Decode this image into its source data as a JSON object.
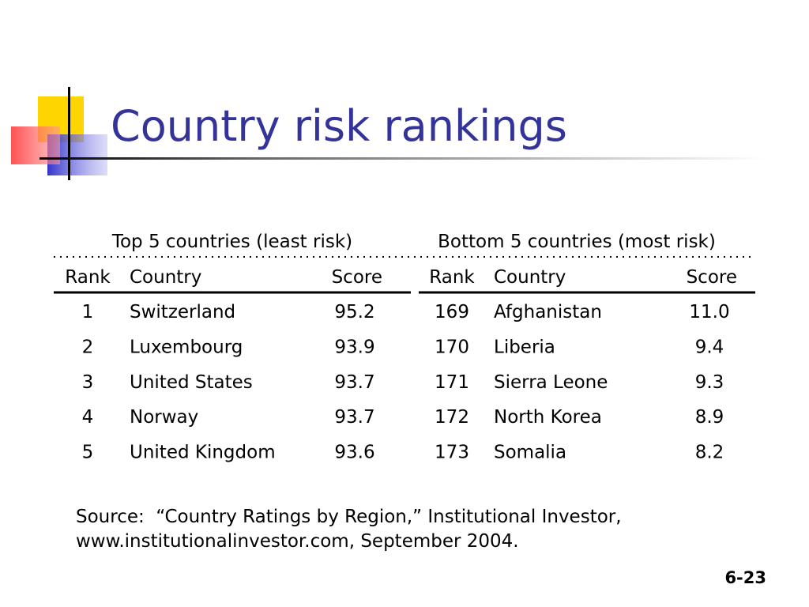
{
  "title": "Country risk rankings",
  "tables": [
    {
      "caption": "Top 5 countries (least risk)",
      "columns": [
        "Rank",
        "Country",
        "Score"
      ],
      "rows": [
        [
          "1",
          "Switzerland",
          "95.2"
        ],
        [
          "2",
          "Luxembourg",
          "93.9"
        ],
        [
          "3",
          "United States",
          "93.7"
        ],
        [
          "4",
          "Norway",
          "93.7"
        ],
        [
          "5",
          "United Kingdom",
          "93.6"
        ]
      ]
    },
    {
      "caption": "Bottom 5 countries (most risk)",
      "columns": [
        "Rank",
        "Country",
        "Score"
      ],
      "rows": [
        [
          "169",
          "Afghanistan",
          "11.0"
        ],
        [
          "170",
          "Liberia",
          "9.4"
        ],
        [
          "171",
          "Sierra Leone",
          "9.3"
        ],
        [
          "172",
          "North Korea",
          "8.9"
        ],
        [
          "173",
          "Somalia",
          "8.2"
        ]
      ]
    }
  ],
  "source": [
    "Source:  “Country Ratings by Region,” Institutional Investor,",
    "www.institutionalinvestor.com, September 2004."
  ],
  "page_number": "6-23"
}
